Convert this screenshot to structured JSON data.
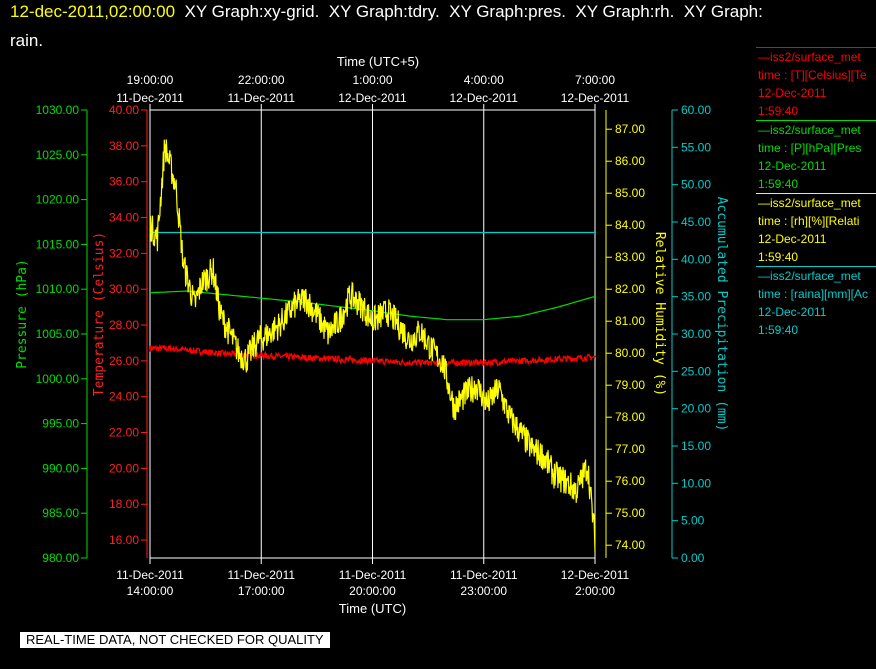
{
  "header": {
    "timestamp": "12-dec-2011,02:00:00",
    "line1_rest": "  XY Graph:xy-grid.  XY Graph:tdry.  XY Graph:pres.  XY Graph:rh.  XY Graph:",
    "line2": "rain."
  },
  "legend": [
    {
      "name": "—iss2/surface_met",
      "units": "time : [T][Celsius][Te",
      "date": "12-Dec-2011",
      "time": "1:59:40",
      "color": "#ff0000"
    },
    {
      "name": "—iss2/surface_met",
      "units": "time : [P][hPa][Pres",
      "date": "12-Dec-2011",
      "time": "1:59:40",
      "color": "#00dd00"
    },
    {
      "name": "—iss2/surface_met",
      "units": "time : [rh][%][Relati",
      "date": "12-Dec-2011",
      "time": "1:59:40",
      "color": "#ffff00"
    },
    {
      "name": "—iss2/surface_met",
      "units": "time : [raina][mm][Ac",
      "date": "12-Dec-2011",
      "time": "1:59:40",
      "color": "#00cccc"
    }
  ],
  "notice": "REAL-TIME DATA, NOT CHECKED FOR QUALITY",
  "chart_data": {
    "type": "line",
    "x_range_hours_utc": [
      14,
      26
    ],
    "xlabel_bottom": "Time (UTC)",
    "xlabel_top": "Time (UTC+5)",
    "x_ticks_bottom": [
      {
        "hour": 14,
        "date": "11-Dec-2011",
        "time": "14:00:00"
      },
      {
        "hour": 17,
        "date": "11-Dec-2011",
        "time": "17:00:00"
      },
      {
        "hour": 20,
        "date": "11-Dec-2011",
        "time": "20:00:00"
      },
      {
        "hour": 23,
        "date": "11-Dec-2011",
        "time": "23:00:00"
      },
      {
        "hour": 26,
        "date": "12-Dec-2011",
        "time": "2:00:00"
      }
    ],
    "x_ticks_top": [
      {
        "hour": 14,
        "date": "11-Dec-2011",
        "time": "19:00:00"
      },
      {
        "hour": 17,
        "date": "11-Dec-2011",
        "time": "22:00:00"
      },
      {
        "hour": 20,
        "date": "12-Dec-2011",
        "time": "1:00:00"
      },
      {
        "hour": 23,
        "date": "12-Dec-2011",
        "time": "4:00:00"
      },
      {
        "hour": 26,
        "date": "12-Dec-2011",
        "time": "7:00:00"
      }
    ],
    "axes": {
      "pressure": {
        "label": "Pressure (hPa)",
        "min": 980,
        "max": 1030,
        "step": 5,
        "color": "#00dd00"
      },
      "temperature": {
        "label": "Temperature (Celsius)",
        "min": 15,
        "max": 40,
        "ticks": [
          16,
          18,
          20,
          22,
          24,
          26,
          28,
          30,
          32,
          34,
          36,
          38,
          40
        ],
        "color": "#ff2020"
      },
      "humidity": {
        "label": "Relative Humidity (%)",
        "min": 73.6,
        "max": 87.6,
        "ticks": [
          74,
          75,
          76,
          77,
          78,
          79,
          80,
          81,
          82,
          83,
          84,
          85,
          86,
          87
        ],
        "color": "#ffff00"
      },
      "precip": {
        "label": "Accumulated Precipitation (mm)",
        "min": 0,
        "max": 60,
        "step": 5,
        "color": "#00cccc"
      }
    },
    "series": [
      {
        "name": "Temperature",
        "axis": "temperature",
        "color": "#ff0000",
        "noise": 0.18,
        "x": [
          14,
          14.5,
          15,
          16,
          17,
          18,
          19,
          20,
          21,
          22,
          23,
          24,
          25,
          26
        ],
        "y": [
          26.7,
          26.7,
          26.6,
          26.4,
          26.3,
          26.2,
          26.1,
          26.0,
          25.9,
          25.9,
          25.9,
          26.0,
          26.1,
          26.2
        ]
      },
      {
        "name": "Pressure",
        "axis": "pressure",
        "color": "#00dd00",
        "noise": 0,
        "x": [
          14,
          15,
          16,
          17,
          18,
          19,
          20,
          21,
          22,
          23,
          24,
          25,
          26
        ],
        "y": [
          1009.6,
          1009.8,
          1009.4,
          1009.0,
          1008.6,
          1008.1,
          1007.6,
          1007.0,
          1006.6,
          1006.6,
          1007.0,
          1008.0,
          1009.2
        ]
      },
      {
        "name": "Relative Humidity",
        "axis": "humidity",
        "color": "#ffff00",
        "noise": 0.45,
        "x": [
          14,
          14.2,
          14.4,
          14.7,
          14.9,
          15.2,
          15.4,
          15.7,
          15.9,
          16.2,
          16.4,
          16.6,
          16.9,
          17.2,
          17.5,
          17.9,
          18.2,
          18.5,
          18.8,
          19.1,
          19.4,
          19.7,
          20.0,
          20.4,
          20.7,
          21.0,
          21.3,
          21.6,
          21.9,
          22.2,
          22.5,
          22.8,
          23.1,
          23.4,
          23.7,
          24.0,
          24.3,
          24.6,
          24.9,
          25.2,
          25.5,
          25.8,
          26.0
        ],
        "y": [
          84.0,
          83.6,
          86.5,
          85.2,
          82.8,
          81.5,
          82.2,
          82.6,
          81.2,
          80.5,
          80.0,
          79.8,
          80.4,
          80.6,
          80.9,
          81.5,
          81.7,
          81.2,
          80.6,
          81.0,
          81.8,
          81.5,
          81.0,
          81.3,
          80.9,
          80.4,
          80.7,
          80.1,
          79.7,
          78.3,
          78.7,
          79.0,
          78.4,
          78.9,
          78.0,
          77.5,
          77.0,
          76.8,
          76.2,
          76.0,
          75.7,
          76.5,
          74.2
        ]
      },
      {
        "name": "Accumulated Precipitation",
        "axis": "precip",
        "color": "#00cccc",
        "noise": 0,
        "x": [
          14,
          26
        ],
        "y": [
          43.6,
          43.6
        ]
      }
    ],
    "grid": true
  }
}
